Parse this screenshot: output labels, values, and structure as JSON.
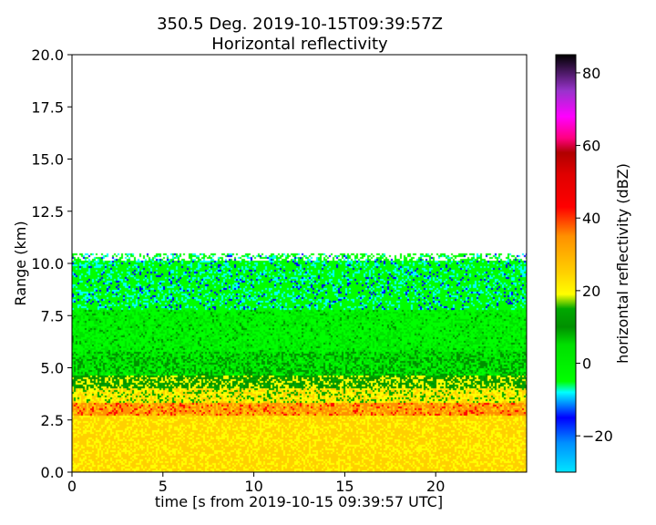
{
  "chart_data": {
    "type": "heatmap",
    "title_line1": "350.5 Deg. 2019-10-15T09:39:57Z",
    "title_line2": "Horizontal reflectivity",
    "xlabel": "time [s from 2019-10-15 09:39:57 UTC]",
    "ylabel": "Range (km)",
    "xlim": [
      0,
      25
    ],
    "ylim": [
      0,
      20
    ],
    "xticks": [
      0,
      5,
      10,
      15,
      20
    ],
    "yticks": [
      0.0,
      2.5,
      5.0,
      7.5,
      10.0,
      12.5,
      15.0,
      17.5,
      20.0
    ],
    "ytick_labels": [
      "0.0",
      "2.5",
      "5.0",
      "7.5",
      "10.0",
      "12.5",
      "15.0",
      "17.5",
      "20.0"
    ],
    "colorbar": {
      "label": "horizontal reflectivity (dBZ)",
      "range": [
        -30,
        85
      ],
      "ticks": [
        -20,
        0,
        20,
        40,
        60,
        80
      ],
      "stops": [
        {
          "value": -30,
          "color": "#00e5ff"
        },
        {
          "value": -22,
          "color": "#0090ff"
        },
        {
          "value": -15,
          "color": "#0000ff"
        },
        {
          "value": -8,
          "color": "#00ffff"
        },
        {
          "value": -5,
          "color": "#00ff00"
        },
        {
          "value": 5,
          "color": "#00e000"
        },
        {
          "value": 10,
          "color": "#009000"
        },
        {
          "value": 15,
          "color": "#00a800"
        },
        {
          "value": 19,
          "color": "#ffff00"
        },
        {
          "value": 25,
          "color": "#ffd000"
        },
        {
          "value": 35,
          "color": "#ff9000"
        },
        {
          "value": 43,
          "color": "#ff0000"
        },
        {
          "value": 52,
          "color": "#e00000"
        },
        {
          "value": 58,
          "color": "#b00000"
        },
        {
          "value": 62,
          "color": "#ff0080"
        },
        {
          "value": 68,
          "color": "#ff00ff"
        },
        {
          "value": 75,
          "color": "#9933cc"
        },
        {
          "value": 85,
          "color": "#000000"
        }
      ]
    },
    "range_profile": [
      {
        "range_min": 0.0,
        "range_max": 2.7,
        "dBZ": 27
      },
      {
        "range_min": 2.7,
        "range_max": 3.3,
        "dBZ": 38
      },
      {
        "range_min": 3.3,
        "range_max": 4.0,
        "dBZ": 23
      },
      {
        "range_min": 4.0,
        "range_max": 4.6,
        "dBZ": 17
      },
      {
        "range_min": 4.6,
        "range_max": 5.8,
        "dBZ": 8
      },
      {
        "range_min": 5.8,
        "range_max": 7.8,
        "dBZ": 4
      },
      {
        "range_min": 7.8,
        "range_max": 10.5,
        "dBZ": -2
      }
    ]
  }
}
